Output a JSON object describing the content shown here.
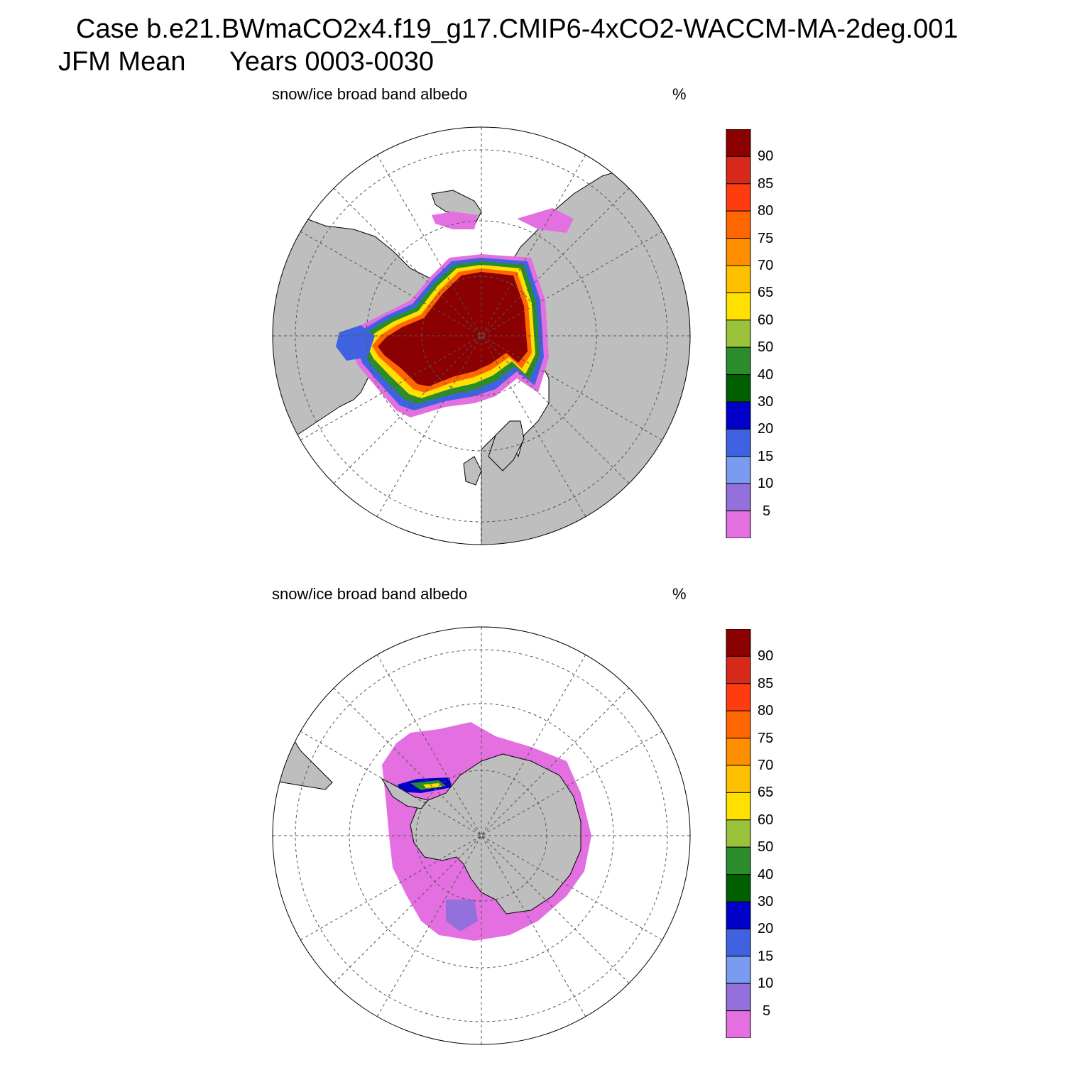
{
  "header": {
    "case_line": "Case b.e21.BWmaCO2x4.f19_g17.CMIP6-4xCO2-WACCM-MA-2deg.001",
    "period_label": "JFM Mean",
    "years_label": "Years 0003-0030"
  },
  "panels": [
    {
      "title": "snow/ice broad band albedo",
      "units": "%"
    },
    {
      "title": "snow/ice broad band albedo",
      "units": "%"
    }
  ],
  "colorbar": {
    "labels": [
      "90",
      "85",
      "80",
      "75",
      "70",
      "65",
      "60",
      "50",
      "40",
      "30",
      "20",
      "15",
      "10",
      "5"
    ],
    "colors": [
      "#8b0000",
      "#d8281a",
      "#ff3b10",
      "#ff6600",
      "#ff8f00",
      "#ffc000",
      "#ffe000",
      "#9ac23a",
      "#2a8c2a",
      "#006000",
      "#0000c8",
      "#3f63e0",
      "#7a9cf0",
      "#9370db",
      "#e36fe0"
    ]
  },
  "map_colors": {
    "land": "#bebebe",
    "ocean": "#ffffff",
    "grid": "#555555"
  }
}
